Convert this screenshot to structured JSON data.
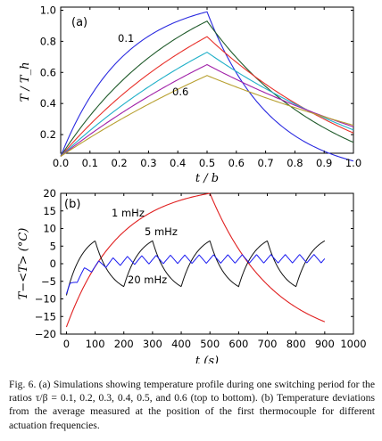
{
  "caption": "Fig. 6. (a) Simulations showing temperature profile during one switching period for the ratios τ/β = 0.1, 0.2, 0.3, 0.4, 0.5, and 0.6 (top to bottom). (b) Temperature deviations from the average measured at the position of the first thermocouple for different actuation frequencies.",
  "chart_data": [
    {
      "type": "line",
      "panel_label": "(a)",
      "xlabel": "t / b",
      "ylabel": "T / T_h",
      "xlim": [
        0,
        1
      ],
      "ylim": [
        0.08,
        1.02
      ],
      "xticks": [
        0,
        0.1,
        0.2,
        0.3,
        0.4,
        0.5,
        0.6,
        0.7,
        0.8,
        0.9,
        1.0
      ],
      "xtick_labels": [
        "0.0",
        "0.1",
        "0.2",
        "0.3",
        "0.4",
        "0.5",
        "0.6",
        "0.7",
        "0.8",
        "0.9",
        "1.0"
      ],
      "yticks": [
        0.2,
        0.4,
        0.6,
        0.8,
        1.0
      ],
      "ytick_labels": [
        "0.2",
        "0.4",
        "0.6",
        "0.8",
        "1.0"
      ],
      "annotations": [
        "0.1",
        "0.6"
      ],
      "series": [
        {
          "ratio": 0.1,
          "color": "#2a2ae0",
          "start": 0.06,
          "peak": 0.99,
          "end": 0.03
        },
        {
          "ratio": 0.2,
          "color": "#1f5a2a",
          "start": 0.06,
          "peak": 0.93,
          "end": 0.15
        },
        {
          "ratio": 0.3,
          "color": "#e8302a",
          "start": 0.06,
          "peak": 0.83,
          "end": 0.21
        },
        {
          "ratio": 0.4,
          "color": "#20b0c8",
          "start": 0.06,
          "peak": 0.73,
          "end": 0.23
        },
        {
          "ratio": 0.5,
          "color": "#a020a8",
          "start": 0.06,
          "peak": 0.65,
          "end": 0.25
        },
        {
          "ratio": 0.6,
          "color": "#b8a030",
          "start": 0.06,
          "peak": 0.58,
          "end": 0.26
        }
      ]
    },
    {
      "type": "line",
      "panel_label": "(b)",
      "xlabel": "t (s)",
      "ylabel": "T−<T> (°C)",
      "xlim": [
        -20,
        1000
      ],
      "ylim": [
        -20,
        20
      ],
      "xticks": [
        0,
        100,
        200,
        300,
        400,
        500,
        600,
        700,
        800,
        900,
        1000
      ],
      "xtick_labels": [
        "0",
        "100",
        "200",
        "300",
        "400",
        "500",
        "600",
        "700",
        "800",
        "900",
        "1000"
      ],
      "yticks": [
        -20,
        -15,
        -10,
        -5,
        0,
        5,
        10,
        15,
        20
      ],
      "ytick_labels": [
        "−20",
        "−15",
        "−10",
        "−5",
        "0",
        "5",
        "10",
        "15",
        "20"
      ],
      "series": [
        {
          "name": "1 mHz",
          "color": "#e02020",
          "x_range": [
            0,
            900
          ],
          "start": -18,
          "peak_x": 500,
          "peak": 20,
          "end": -16.5
        },
        {
          "name": "5 mHz",
          "color": "#111111",
          "x_range": [
            0,
            900
          ],
          "amplitude": 6.5,
          "period_s": 200,
          "first_peak_x": 100
        },
        {
          "name": "20 mHz",
          "color": "#1a1af0",
          "x_range": [
            0,
            900
          ],
          "amplitude": 1.2,
          "period_s": 50,
          "start": -8,
          "offset_end": 1.5
        }
      ]
    }
  ]
}
